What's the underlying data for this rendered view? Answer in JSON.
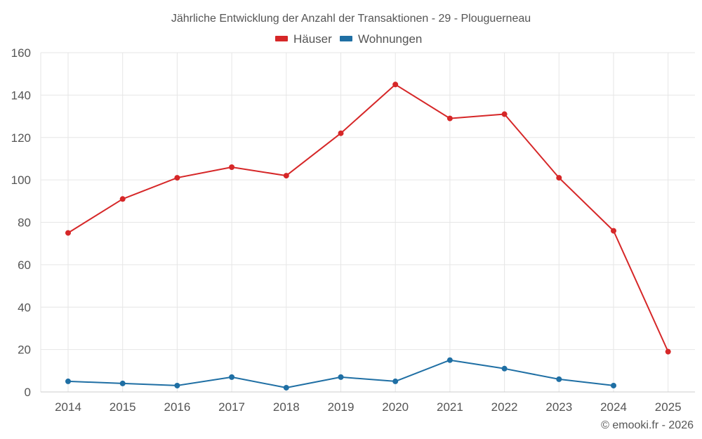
{
  "chart_data": {
    "type": "line",
    "title": "Jährliche Entwicklung der Anzahl der Transaktionen - 29 - Plouguerneau",
    "xlabel": "",
    "ylabel": "",
    "x": [
      2014,
      2015,
      2016,
      2017,
      2018,
      2019,
      2020,
      2021,
      2022,
      2023,
      2024,
      2025
    ],
    "x_tick_labels": [
      "2014",
      "2015",
      "2016",
      "2017",
      "2018",
      "2019",
      "2020",
      "2021",
      "2022",
      "2023",
      "2024",
      "2025"
    ],
    "ylim": [
      0,
      160
    ],
    "y_ticks": [
      0,
      20,
      40,
      60,
      80,
      100,
      120,
      140,
      160
    ],
    "y_tick_labels": [
      "0",
      "20",
      "40",
      "60",
      "80",
      "100",
      "120",
      "140",
      "160"
    ],
    "grid": true,
    "legend_position": "top-center",
    "series": [
      {
        "name": "Häuser",
        "color": "#d62728",
        "values": [
          75,
          91,
          101,
          106,
          102,
          122,
          145,
          129,
          131,
          101,
          76,
          19
        ]
      },
      {
        "name": "Wohnungen",
        "color": "#1f6fa4",
        "values": [
          5,
          4,
          3,
          7,
          2,
          7,
          5,
          15,
          11,
          6,
          3,
          null
        ]
      }
    ]
  },
  "credit": "© emooki.fr - 2026"
}
